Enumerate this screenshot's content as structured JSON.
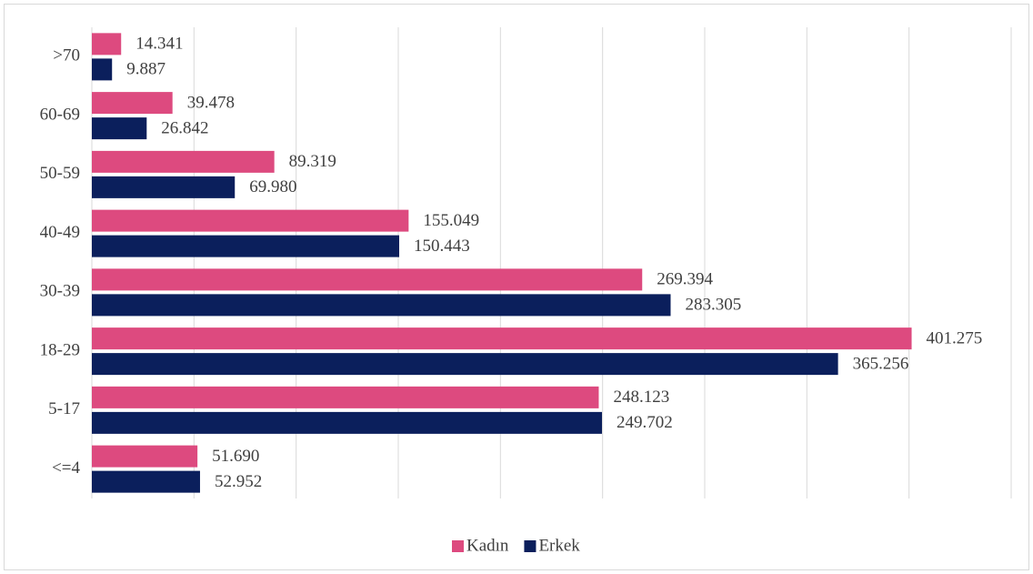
{
  "chart_data": {
    "type": "hbar",
    "categories": [
      ">70",
      "60-69",
      "50-59",
      "40-49",
      "30-39",
      "18-29",
      "5-17",
      "<=4"
    ],
    "series": [
      {
        "name": "Kadın",
        "color": "#dd4a7f",
        "values": [
          14341,
          39478,
          89319,
          155049,
          269394,
          401275,
          248123,
          51690
        ],
        "value_labels": [
          "14.341",
          "39.478",
          "89.319",
          "155.049",
          "269.394",
          "401.275",
          "248.123",
          "51.690"
        ]
      },
      {
        "name": "Erkek",
        "color": "#0b1f5c",
        "values": [
          9887,
          26842,
          69980,
          150443,
          283305,
          365256,
          249702,
          52952
        ],
        "value_labels": [
          "9.887",
          "26.842",
          "69.980",
          "150.443",
          "283.305",
          "365.256",
          "249.702",
          "52.952"
        ]
      }
    ],
    "xlim": [
      0,
      450000
    ],
    "xticks": [
      0,
      50000,
      100000,
      150000,
      200000,
      250000,
      300000,
      350000,
      400000,
      450000
    ],
    "grid": true,
    "legend": "bottom"
  }
}
